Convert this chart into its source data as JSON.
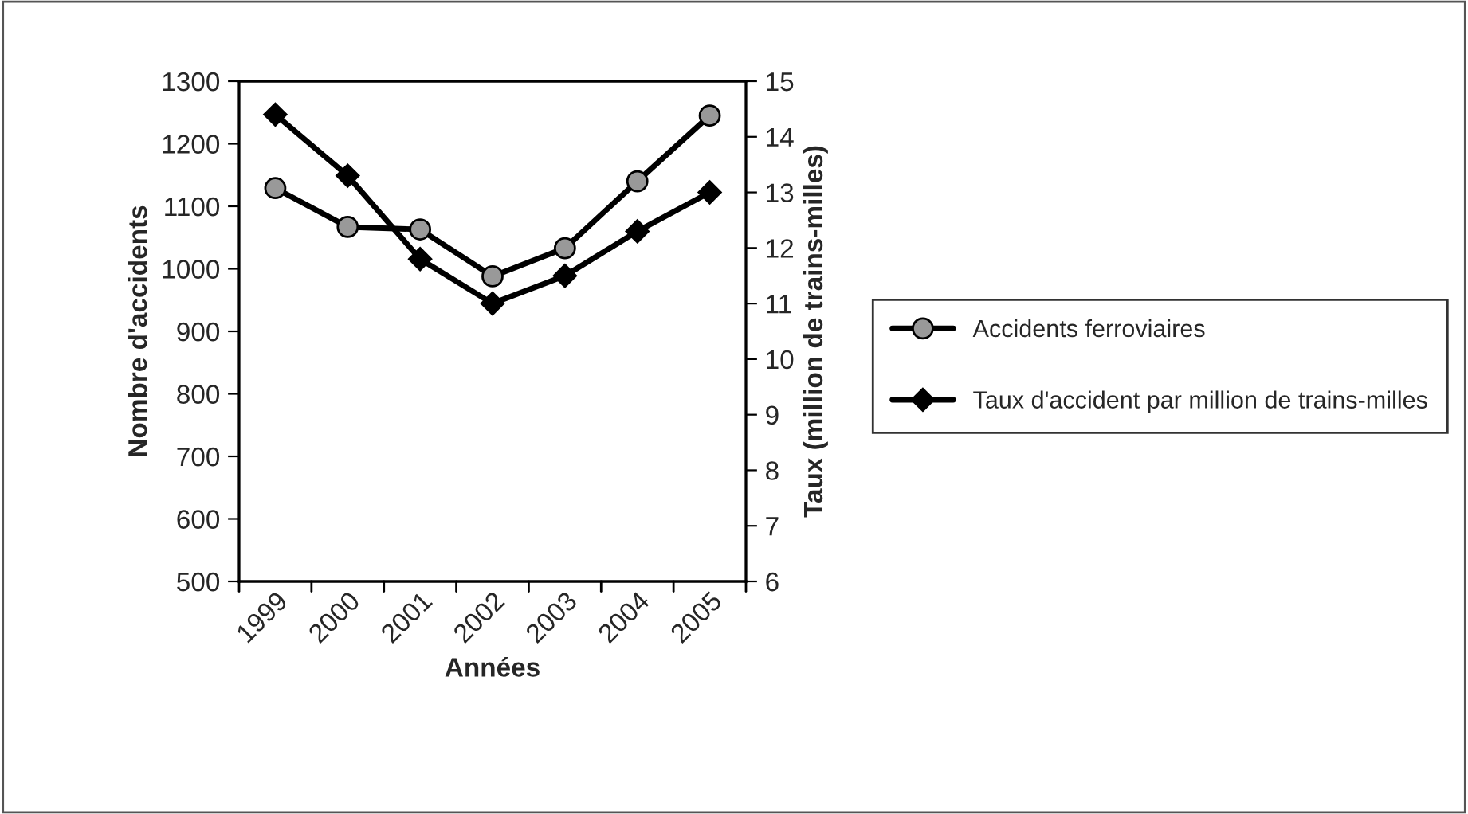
{
  "chart_data": {
    "type": "line",
    "xlabel": "Années",
    "ylabel": "Nombre d'accidents",
    "y2label": "Taux (million de trains-milles)",
    "categories": [
      "1999",
      "2000",
      "2001",
      "2002",
      "2003",
      "2004",
      "2005"
    ],
    "series": [
      {
        "name": "Accidents ferroviaires",
        "color": "#000000",
        "marker": "circle",
        "values": [
          1129,
          1067,
          1063,
          988,
          1033,
          1140,
          1245
        ]
      },
      {
        "name": "Taux d'accident par million de trains-milles",
        "color": "#000000",
        "marker": "diamond",
        "axis": "y2",
        "values": [
          14.4,
          13.3,
          11.8,
          11.0,
          11.5,
          12.3,
          13.0
        ]
      }
    ],
    "ylim": [
      500,
      1300
    ],
    "yticks": [
      500,
      600,
      700,
      800,
      900,
      1000,
      1100,
      1200,
      1300
    ],
    "y2lim": [
      6,
      15
    ],
    "y2ticks": [
      6,
      7,
      8,
      9,
      10,
      11,
      12,
      13,
      14,
      15
    ],
    "grid": false,
    "legend": "right",
    "line_style": "solid"
  }
}
